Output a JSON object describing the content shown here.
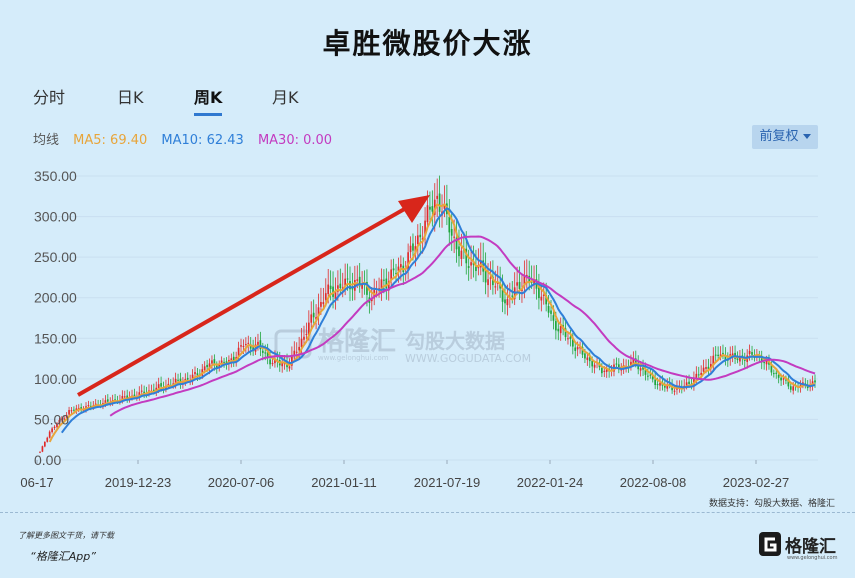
{
  "title": "卓胜微股价大涨",
  "tabs": [
    {
      "label": "分时",
      "active": false
    },
    {
      "label": "日K",
      "active": false
    },
    {
      "label": "周K",
      "active": true
    },
    {
      "label": "月K",
      "active": false
    }
  ],
  "ma_legend": {
    "label": "均线",
    "ma5": "MA5: 69.40",
    "ma10": "MA10: 62.43",
    "ma30": "MA30: 0.00"
  },
  "adjust_button": "前复权",
  "watermark": {
    "brand": "格隆汇",
    "brand_url": "www.gelonghui.com",
    "data": "勾股大数据",
    "data_url": "WWW.GOGUDATA.COM"
  },
  "source_note": "数据支持：勾股大数据、格隆汇",
  "footer_line1": "了解更多图文干货，请下载",
  "footer_line2": "“格隆汇App”",
  "logo_text": "格隆汇",
  "logo_sub": "www.gelonghui.com",
  "colors": {
    "background": "#d5ecfa",
    "up": "#e02a2a",
    "down": "#1ea53a",
    "ma5": "#e8a53a",
    "ma10": "#2f7fd8",
    "ma30": "#c33bc0",
    "arrow": "#d8261b"
  },
  "chart_data": {
    "type": "candlestick",
    "ylim": [
      0,
      350
    ],
    "yticks": [
      "350.00",
      "300.00",
      "250.00",
      "200.00",
      "150.00",
      "100.00",
      "50.00",
      "0.00"
    ],
    "xticks": [
      "06-17",
      "2019-12-23",
      "2020-07-06",
      "2021-01-11",
      "2021-07-19",
      "2022-01-24",
      "2022-08-08",
      "2023-02-27"
    ],
    "series": [
      {
        "name": "MA5",
        "value": 69.4
      },
      {
        "name": "MA10",
        "value": 62.43
      },
      {
        "name": "MA30",
        "value": 0.0
      }
    ],
    "close_anchors": [
      {
        "x": 0,
        "y": 10
      },
      {
        "x": 4,
        "y": 35
      },
      {
        "x": 12,
        "y": 60
      },
      {
        "x": 26,
        "y": 70
      },
      {
        "x": 40,
        "y": 80
      },
      {
        "x": 55,
        "y": 95
      },
      {
        "x": 62,
        "y": 100
      },
      {
        "x": 70,
        "y": 118
      },
      {
        "x": 78,
        "y": 120
      },
      {
        "x": 84,
        "y": 142
      },
      {
        "x": 90,
        "y": 140
      },
      {
        "x": 96,
        "y": 120
      },
      {
        "x": 103,
        "y": 118
      },
      {
        "x": 110,
        "y": 160
      },
      {
        "x": 118,
        "y": 205
      },
      {
        "x": 125,
        "y": 215
      },
      {
        "x": 131,
        "y": 220
      },
      {
        "x": 137,
        "y": 200
      },
      {
        "x": 142,
        "y": 220
      },
      {
        "x": 150,
        "y": 240
      },
      {
        "x": 155,
        "y": 265
      },
      {
        "x": 160,
        "y": 300
      },
      {
        "x": 164,
        "y": 325
      },
      {
        "x": 168,
        "y": 295
      },
      {
        "x": 174,
        "y": 250
      },
      {
        "x": 182,
        "y": 235
      },
      {
        "x": 188,
        "y": 215
      },
      {
        "x": 193,
        "y": 195
      },
      {
        "x": 200,
        "y": 225
      },
      {
        "x": 206,
        "y": 210
      },
      {
        "x": 212,
        "y": 170
      },
      {
        "x": 218,
        "y": 150
      },
      {
        "x": 224,
        "y": 130
      },
      {
        "x": 232,
        "y": 110
      },
      {
        "x": 240,
        "y": 115
      },
      {
        "x": 246,
        "y": 120
      },
      {
        "x": 252,
        "y": 100
      },
      {
        "x": 258,
        "y": 90
      },
      {
        "x": 265,
        "y": 88
      },
      {
        "x": 272,
        "y": 105
      },
      {
        "x": 280,
        "y": 130
      },
      {
        "x": 288,
        "y": 125
      },
      {
        "x": 296,
        "y": 130
      },
      {
        "x": 304,
        "y": 105
      },
      {
        "x": 310,
        "y": 90
      },
      {
        "x": 316,
        "y": 92
      },
      {
        "x": 320,
        "y": 96
      }
    ]
  }
}
